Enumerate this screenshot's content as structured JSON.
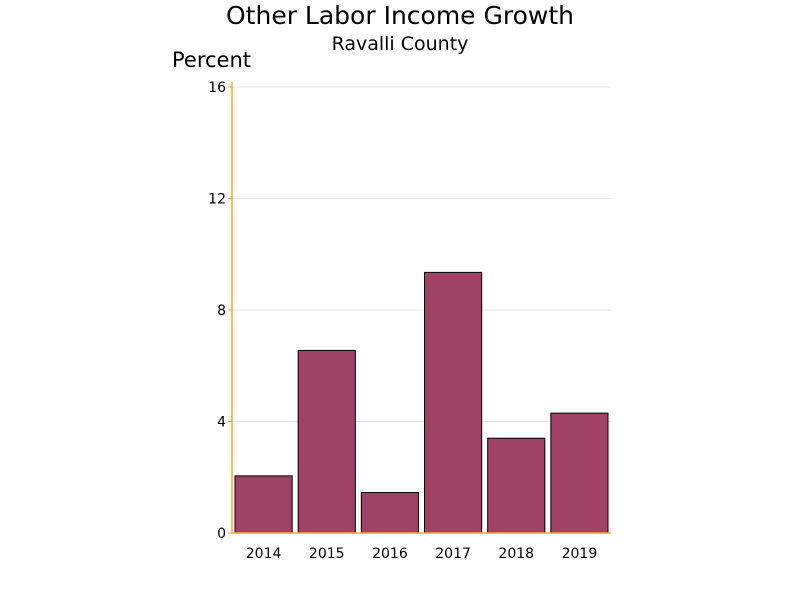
{
  "chart_data": {
    "type": "bar",
    "title": "Other Labor Income Growth",
    "subtitle": "Ravalli County",
    "ylabel": "Percent",
    "xlabel": "",
    "categories": [
      "2014",
      "2015",
      "2016",
      "2017",
      "2018",
      "2019"
    ],
    "values": [
      2.05,
      6.55,
      1.45,
      9.35,
      3.4,
      4.3
    ],
    "ylim": [
      0,
      16
    ],
    "yticks": [
      "0",
      "4",
      "8",
      "12",
      "16"
    ],
    "grid": true,
    "legend": "none",
    "colors": {
      "bar_fill": "#a04266",
      "bar_stroke": "#000000",
      "axis": "#f5a623",
      "grid": "#e6e6e6"
    }
  }
}
